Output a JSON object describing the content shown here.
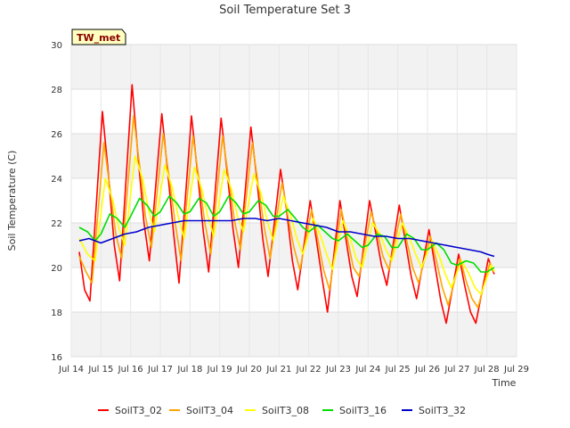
{
  "chart_data": {
    "type": "line",
    "title": "Soil Temperature Set 3",
    "xlabel": "Time",
    "ylabel": "Soil Temperature (C)",
    "site_badge": "TW_met",
    "xlim": [
      14,
      29
    ],
    "ylim": [
      16,
      30
    ],
    "x_ticks": [
      14,
      15,
      16,
      17,
      18,
      19,
      20,
      21,
      22,
      23,
      24,
      25,
      26,
      27,
      28,
      29
    ],
    "x_tick_labels": [
      "Jul 14",
      "Jul 15",
      "Jul 16",
      "Jul 17",
      "Jul 18",
      "Jul 19",
      "Jul 20",
      "Jul 21",
      "Jul 22",
      "Jul 23",
      "Jul 24",
      "Jul 25",
      "Jul 26",
      "Jul 27",
      "Jul 28",
      "Jul 29"
    ],
    "y_ticks": [
      16,
      18,
      20,
      22,
      24,
      26,
      28,
      30
    ],
    "y_tick_labels": [
      "16",
      "18",
      "20",
      "22",
      "24",
      "26",
      "28",
      "30"
    ],
    "grid": true,
    "legend_position": "bottom",
    "series": [
      {
        "name": "SoilT3_02",
        "color": "#ff0000",
        "x": [
          14.27,
          14.45,
          14.63,
          15.05,
          15.25,
          15.45,
          15.63,
          16.05,
          16.25,
          16.45,
          16.63,
          17.05,
          17.25,
          17.45,
          17.63,
          18.05,
          18.25,
          18.45,
          18.63,
          19.05,
          19.25,
          19.45,
          19.63,
          20.05,
          20.25,
          20.45,
          20.63,
          21.05,
          21.25,
          21.45,
          21.63,
          22.05,
          22.25,
          22.45,
          22.63,
          23.05,
          23.25,
          23.45,
          23.63,
          24.05,
          24.25,
          24.45,
          24.63,
          25.05,
          25.25,
          25.45,
          25.63,
          26.05,
          26.25,
          26.45,
          26.63,
          27.05,
          27.25,
          27.45,
          27.63,
          28.05,
          28.25
        ],
        "y": [
          20.7,
          19.0,
          18.5,
          27.0,
          24.2,
          21.0,
          19.4,
          28.2,
          25.0,
          22.0,
          20.3,
          26.9,
          24.3,
          21.5,
          19.3,
          26.8,
          24.3,
          21.6,
          19.8,
          26.7,
          24.3,
          21.7,
          20.0,
          26.3,
          24.0,
          21.3,
          19.6,
          24.4,
          22.6,
          20.3,
          19.0,
          23.0,
          21.3,
          19.5,
          18.0,
          23.0,
          21.3,
          19.6,
          18.7,
          23.0,
          21.6,
          20.1,
          19.2,
          22.8,
          21.2,
          19.6,
          18.6,
          21.7,
          20.1,
          18.5,
          17.5,
          20.6,
          19.2,
          18.0,
          17.5,
          20.4,
          19.7
        ]
      },
      {
        "name": "SoilT3_04",
        "color": "#ffa500",
        "x": [
          14.27,
          14.5,
          14.7,
          15.1,
          15.3,
          15.5,
          15.7,
          16.1,
          16.3,
          16.5,
          16.7,
          17.1,
          17.3,
          17.5,
          17.7,
          18.1,
          18.3,
          18.5,
          18.7,
          19.1,
          19.3,
          19.5,
          19.7,
          20.1,
          20.3,
          20.5,
          20.7,
          21.1,
          21.3,
          21.5,
          21.7,
          22.1,
          22.3,
          22.5,
          22.7,
          23.1,
          23.3,
          23.5,
          23.7,
          24.1,
          24.3,
          24.5,
          24.7,
          25.1,
          25.3,
          25.5,
          25.7,
          26.1,
          26.3,
          26.5,
          26.7,
          27.1,
          27.3,
          27.5,
          27.7,
          28.1,
          28.25
        ],
        "y": [
          20.5,
          19.8,
          19.3,
          25.6,
          23.6,
          21.5,
          20.4,
          26.8,
          24.6,
          22.3,
          20.9,
          26.0,
          24.0,
          22.0,
          20.3,
          25.9,
          24.0,
          22.0,
          20.6,
          25.9,
          24.0,
          22.1,
          20.8,
          25.6,
          23.7,
          21.8,
          20.4,
          23.8,
          22.3,
          20.9,
          19.9,
          22.6,
          21.3,
          19.9,
          19.0,
          22.6,
          21.3,
          20.0,
          19.6,
          22.5,
          21.6,
          20.5,
          19.9,
          22.4,
          21.2,
          20.0,
          19.3,
          21.4,
          20.3,
          19.1,
          18.3,
          20.4,
          19.4,
          18.6,
          18.2,
          20.2,
          19.8
        ]
      },
      {
        "name": "SoilT3_08",
        "color": "#ffff00",
        "x": [
          14.27,
          14.55,
          14.8,
          15.15,
          15.4,
          15.6,
          15.8,
          16.15,
          16.4,
          16.6,
          16.8,
          17.15,
          17.4,
          17.6,
          17.8,
          18.15,
          18.4,
          18.6,
          18.8,
          19.15,
          19.4,
          19.6,
          19.8,
          20.15,
          20.4,
          20.6,
          20.8,
          21.15,
          21.4,
          21.6,
          21.8,
          22.15,
          22.4,
          22.6,
          22.8,
          23.15,
          23.4,
          23.6,
          23.8,
          24.15,
          24.4,
          24.6,
          24.8,
          25.15,
          25.4,
          25.6,
          25.8,
          26.15,
          26.4,
          26.6,
          26.8,
          27.15,
          27.4,
          27.6,
          27.8,
          28.15,
          28.25
        ],
        "y": [
          21.3,
          20.6,
          20.3,
          24.0,
          23.0,
          21.8,
          21.0,
          25.0,
          24.0,
          22.6,
          21.6,
          24.6,
          23.6,
          22.3,
          21.3,
          24.5,
          23.5,
          22.3,
          21.4,
          24.4,
          23.5,
          22.3,
          21.6,
          24.2,
          23.3,
          22.1,
          21.2,
          23.2,
          22.3,
          21.3,
          20.6,
          22.2,
          21.4,
          20.6,
          19.9,
          22.1,
          21.3,
          20.4,
          20.0,
          22.0,
          21.5,
          20.8,
          20.3,
          22.0,
          21.3,
          20.6,
          20.0,
          21.2,
          20.5,
          19.7,
          19.1,
          20.3,
          19.7,
          19.1,
          18.8,
          20.1,
          19.8
        ]
      },
      {
        "name": "SoilT3_16",
        "color": "#00dd00",
        "x": [
          14.27,
          14.55,
          14.8,
          15.0,
          15.3,
          15.55,
          15.8,
          16.0,
          16.3,
          16.55,
          16.8,
          17.0,
          17.3,
          17.55,
          17.8,
          18.0,
          18.3,
          18.55,
          18.8,
          19.0,
          19.3,
          19.55,
          19.8,
          20.0,
          20.3,
          20.55,
          20.8,
          21.0,
          21.3,
          21.55,
          21.8,
          22.0,
          22.3,
          22.55,
          22.8,
          23.0,
          23.3,
          23.55,
          23.8,
          24.0,
          24.3,
          24.55,
          24.8,
          25.0,
          25.3,
          25.55,
          25.8,
          26.0,
          26.3,
          26.55,
          26.8,
          27.0,
          27.3,
          27.55,
          27.8,
          28.0,
          28.25
        ],
        "y": [
          21.8,
          21.6,
          21.2,
          21.5,
          22.4,
          22.2,
          21.8,
          22.3,
          23.1,
          22.8,
          22.3,
          22.5,
          23.2,
          22.9,
          22.4,
          22.5,
          23.1,
          22.9,
          22.3,
          22.5,
          23.2,
          22.9,
          22.4,
          22.5,
          23.0,
          22.8,
          22.3,
          22.3,
          22.6,
          22.2,
          21.8,
          21.6,
          21.9,
          21.6,
          21.3,
          21.2,
          21.5,
          21.2,
          20.9,
          21.0,
          21.5,
          21.4,
          20.9,
          20.9,
          21.5,
          21.3,
          20.8,
          20.8,
          21.1,
          20.8,
          20.2,
          20.1,
          20.3,
          20.2,
          19.8,
          19.8,
          20.0
        ]
      },
      {
        "name": "SoilT3_32",
        "color": "#0000cc",
        "x": [
          14.27,
          14.6,
          15.0,
          15.4,
          15.8,
          16.2,
          16.6,
          17.0,
          17.4,
          17.8,
          18.2,
          18.6,
          19.0,
          19.4,
          19.8,
          20.2,
          20.6,
          21.0,
          21.4,
          21.8,
          22.2,
          22.6,
          23.0,
          23.4,
          23.8,
          24.2,
          24.6,
          25.0,
          25.4,
          25.8,
          26.2,
          26.6,
          27.0,
          27.4,
          27.8,
          28.0,
          28.25
        ],
        "y": [
          21.2,
          21.3,
          21.1,
          21.3,
          21.5,
          21.6,
          21.8,
          21.9,
          22.0,
          22.1,
          22.1,
          22.1,
          22.1,
          22.1,
          22.2,
          22.2,
          22.1,
          22.2,
          22.1,
          22.0,
          21.9,
          21.8,
          21.6,
          21.6,
          21.5,
          21.4,
          21.4,
          21.3,
          21.3,
          21.2,
          21.1,
          21.0,
          20.9,
          20.8,
          20.7,
          20.6,
          20.5
        ]
      }
    ]
  }
}
